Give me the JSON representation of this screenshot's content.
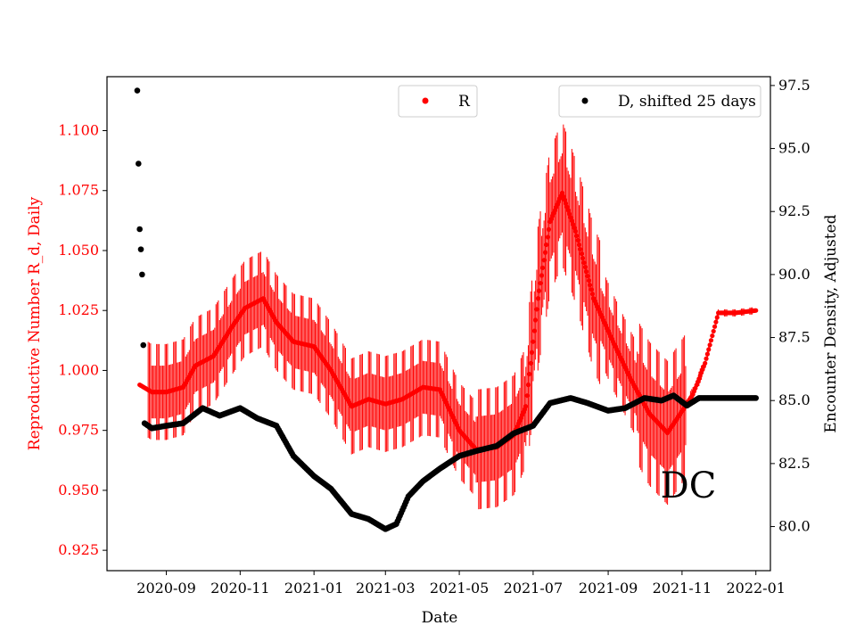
{
  "chart_data": {
    "type": "scatter",
    "xlabel": "Date",
    "ylabel_left": "Reproductive Number R_d, Daily",
    "ylabel_right": "Encounter Density, Adjusted",
    "annotation": "DC",
    "x_ticks": [
      "2020-09",
      "2020-11",
      "2021-01",
      "2021-03",
      "2021-05",
      "2021-07",
      "2021-09",
      "2021-11",
      "2022-01"
    ],
    "y_left_ticks": [
      "0.925",
      "0.950",
      "0.975",
      "1.000",
      "1.025",
      "1.050",
      "1.075",
      "1.100"
    ],
    "y_right_ticks": [
      "80.0",
      "82.5",
      "85.0",
      "87.5",
      "90.0",
      "92.5",
      "95.0",
      "97.5"
    ],
    "xlim": [
      "2020-07-14",
      "2022-01-13"
    ],
    "ylim_left": [
      0.9165,
      1.1225
    ],
    "ylim_right": [
      78.25,
      97.85
    ],
    "legend": [
      "R",
      "D, shifted 25 days"
    ],
    "colors": {
      "R": "#ff0000",
      "D": "#000000",
      "left_axis": "#ff0000",
      "right_axis": "#000000"
    },
    "series": [
      {
        "name": "R",
        "axis": "left",
        "color": "#ff0000",
        "marker": "point-with-error-bars",
        "points": [
          [
            "2020-08-10",
            0.994
          ],
          [
            "2020-08-20",
            0.991
          ],
          [
            "2020-09-01",
            0.991
          ],
          [
            "2020-09-15",
            0.993
          ],
          [
            "2020-09-25",
            1.002
          ],
          [
            "2020-10-10",
            1.006
          ],
          [
            "2020-10-25",
            1.018
          ],
          [
            "2020-11-05",
            1.026
          ],
          [
            "2020-11-20",
            1.03
          ],
          [
            "2020-12-01",
            1.02
          ],
          [
            "2020-12-15",
            1.012
          ],
          [
            "2021-01-01",
            1.01
          ],
          [
            "2021-01-15",
            1.0
          ],
          [
            "2021-02-01",
            0.985
          ],
          [
            "2021-02-15",
            0.988
          ],
          [
            "2021-03-01",
            0.986
          ],
          [
            "2021-03-15",
            0.988
          ],
          [
            "2021-04-01",
            0.993
          ],
          [
            "2021-04-15",
            0.992
          ],
          [
            "2021-05-01",
            0.975
          ],
          [
            "2021-05-15",
            0.967
          ],
          [
            "2021-06-01",
            0.968
          ],
          [
            "2021-06-15",
            0.973
          ],
          [
            "2021-06-25",
            0.985
          ],
          [
            "2021-07-05",
            1.03
          ],
          [
            "2021-07-15",
            1.062
          ],
          [
            "2021-07-25",
            1.074
          ],
          [
            "2021-08-05",
            1.058
          ],
          [
            "2021-08-20",
            1.03
          ],
          [
            "2021-09-05",
            1.012
          ],
          [
            "2021-09-20",
            0.996
          ],
          [
            "2021-10-05",
            0.982
          ],
          [
            "2021-10-20",
            0.974
          ],
          [
            "2021-11-01",
            0.983
          ],
          [
            "2021-11-10",
            0.99
          ],
          [
            "2021-11-20",
            1.003
          ],
          [
            "2021-12-01",
            1.024
          ],
          [
            "2021-12-15",
            1.024
          ],
          [
            "2022-01-01",
            1.025
          ]
        ]
      },
      {
        "name": "D, shifted 25 days",
        "axis": "right",
        "color": "#000000",
        "marker": "dot",
        "points": [
          [
            "2020-08-08",
            97.3
          ],
          [
            "2020-08-09",
            94.4
          ],
          [
            "2020-08-10",
            91.8
          ],
          [
            "2020-08-11",
            91.0
          ],
          [
            "2020-08-12",
            90.0
          ],
          [
            "2020-08-13",
            87.2
          ],
          [
            "2020-08-14",
            84.1
          ],
          [
            "2020-08-20",
            83.9
          ],
          [
            "2020-09-01",
            84.0
          ],
          [
            "2020-09-15",
            84.1
          ],
          [
            "2020-10-01",
            84.7
          ],
          [
            "2020-10-15",
            84.4
          ],
          [
            "2020-11-01",
            84.7
          ],
          [
            "2020-11-15",
            84.3
          ],
          [
            "2020-12-01",
            84.0
          ],
          [
            "2020-12-15",
            82.8
          ],
          [
            "2021-01-01",
            82.0
          ],
          [
            "2021-01-15",
            81.5
          ],
          [
            "2021-02-01",
            80.5
          ],
          [
            "2021-02-15",
            80.3
          ],
          [
            "2021-03-01",
            79.9
          ],
          [
            "2021-03-10",
            80.1
          ],
          [
            "2021-03-20",
            81.2
          ],
          [
            "2021-04-01",
            81.8
          ],
          [
            "2021-04-15",
            82.3
          ],
          [
            "2021-05-01",
            82.8
          ],
          [
            "2021-05-15",
            83.0
          ],
          [
            "2021-06-01",
            83.2
          ],
          [
            "2021-06-15",
            83.7
          ],
          [
            "2021-07-01",
            84.0
          ],
          [
            "2021-07-15",
            84.9
          ],
          [
            "2021-08-01",
            85.1
          ],
          [
            "2021-08-15",
            84.9
          ],
          [
            "2021-09-01",
            84.6
          ],
          [
            "2021-09-15",
            84.7
          ],
          [
            "2021-10-01",
            85.1
          ],
          [
            "2021-10-15",
            85.0
          ],
          [
            "2021-10-25",
            85.2
          ],
          [
            "2021-11-05",
            84.8
          ],
          [
            "2021-11-15",
            85.1
          ],
          [
            "2021-12-01",
            85.1
          ],
          [
            "2021-12-15",
            85.1
          ],
          [
            "2022-01-01",
            85.1
          ]
        ]
      }
    ]
  }
}
